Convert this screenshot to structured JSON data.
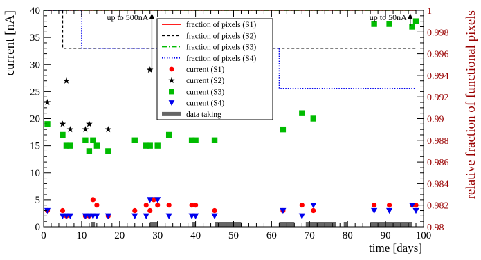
{
  "chart_data": {
    "type": "scatter",
    "xlabel": "time [days]",
    "ylabel_left": "current [nA]",
    "ylabel_right": "relative fraction of functional pixels",
    "xlim": [
      0,
      100
    ],
    "ylim_left": [
      0,
      40
    ],
    "ylim_right": [
      0.98,
      1.0
    ],
    "x_ticks": [
      0,
      10,
      20,
      30,
      40,
      50,
      60,
      70,
      80,
      90,
      100
    ],
    "y_ticks_left": [
      0,
      5,
      10,
      15,
      20,
      25,
      30,
      35,
      40
    ],
    "y_ticks_right": [
      0.98,
      0.982,
      0.984,
      0.986,
      0.988,
      0.99,
      0.992,
      0.994,
      0.996,
      0.998,
      1
    ],
    "grid": false,
    "legend_position": "top-center",
    "colors": {
      "s1": "#ff0000",
      "s2": "#000000",
      "s3": "#00bb00",
      "s4": "#0000ee",
      "data_taking": "#666666",
      "right_axis": "#990000"
    },
    "annotations": [
      {
        "text": "up to 500nA",
        "x": 28.5,
        "y": 40
      },
      {
        "text": "up to 50nA",
        "x": 96.5,
        "y": 40
      }
    ],
    "fraction_series": [
      {
        "name": "fraction of pixels (S1)",
        "style": "solid",
        "color": "#ff0000",
        "points": [
          [
            0,
            1.0
          ],
          [
            98,
            1.0
          ]
        ]
      },
      {
        "name": "fraction of pixels (S2)",
        "style": "dashed",
        "color": "#000000",
        "points": [
          [
            0,
            1.0
          ],
          [
            5,
            1.0
          ],
          [
            5,
            0.9965
          ],
          [
            98,
            0.9965
          ]
        ]
      },
      {
        "name": "fraction of pixels (S3)",
        "style": "dashdot",
        "color": "#00bb00",
        "points": [
          [
            0,
            1.0
          ],
          [
            98,
            1.0
          ]
        ]
      },
      {
        "name": "fraction of pixels (S4)",
        "style": "dotted",
        "color": "#0000ee",
        "points": [
          [
            0,
            1.0
          ],
          [
            10,
            1.0
          ],
          [
            10,
            0.9965
          ],
          [
            62,
            0.9965
          ],
          [
            62,
            0.9928
          ],
          [
            98,
            0.9928
          ]
        ]
      }
    ],
    "current_series": [
      {
        "name": "current (S1)",
        "marker": "circle",
        "color": "#ff0000",
        "points": [
          [
            1,
            3
          ],
          [
            5,
            3
          ],
          [
            6,
            2
          ],
          [
            11,
            2
          ],
          [
            12,
            2
          ],
          [
            13,
            5
          ],
          [
            14,
            4
          ],
          [
            17,
            2
          ],
          [
            24,
            3
          ],
          [
            27,
            4
          ],
          [
            28,
            3
          ],
          [
            29,
            5
          ],
          [
            30,
            4
          ],
          [
            33,
            4
          ],
          [
            39,
            4
          ],
          [
            40,
            4
          ],
          [
            45,
            3
          ],
          [
            63,
            3
          ],
          [
            68,
            4
          ],
          [
            71,
            3
          ],
          [
            87,
            4
          ],
          [
            91,
            4
          ],
          [
            97,
            4
          ],
          [
            98,
            4
          ]
        ]
      },
      {
        "name": "current (S2)",
        "marker": "star",
        "color": "#000000",
        "points": [
          [
            1,
            23
          ],
          [
            5,
            19
          ],
          [
            6,
            27
          ],
          [
            7,
            18
          ],
          [
            11,
            18
          ],
          [
            12,
            19
          ],
          [
            17,
            18
          ],
          [
            28,
            29
          ]
        ]
      },
      {
        "name": "current (S3)",
        "marker": "square",
        "color": "#00bb00",
        "points": [
          [
            1,
            19
          ],
          [
            5,
            17
          ],
          [
            6,
            15
          ],
          [
            7,
            15
          ],
          [
            11,
            16
          ],
          [
            12,
            14
          ],
          [
            13,
            16
          ],
          [
            14,
            15
          ],
          [
            17,
            14
          ],
          [
            24,
            16
          ],
          [
            27,
            15
          ],
          [
            28,
            15
          ],
          [
            30,
            15
          ],
          [
            33,
            17
          ],
          [
            39,
            16
          ],
          [
            40,
            16
          ],
          [
            45,
            16
          ],
          [
            63,
            18
          ],
          [
            68,
            21
          ],
          [
            71,
            20
          ],
          [
            87,
            37.5
          ],
          [
            91,
            37.5
          ],
          [
            97,
            37
          ],
          [
            98,
            38
          ]
        ]
      },
      {
        "name": "current (S4)",
        "marker": "triangle-down",
        "color": "#0000ee",
        "points": [
          [
            1,
            3
          ],
          [
            5,
            2
          ],
          [
            6,
            2
          ],
          [
            7,
            2
          ],
          [
            11,
            2
          ],
          [
            12,
            2
          ],
          [
            13,
            2
          ],
          [
            14,
            2
          ],
          [
            17,
            2
          ],
          [
            24,
            2
          ],
          [
            27,
            2
          ],
          [
            28,
            5
          ],
          [
            30,
            5
          ],
          [
            33,
            2
          ],
          [
            39,
            2
          ],
          [
            40,
            2
          ],
          [
            45,
            2
          ],
          [
            63,
            3
          ],
          [
            68,
            2
          ],
          [
            71,
            4
          ],
          [
            87,
            3
          ],
          [
            91,
            3
          ],
          [
            97,
            4
          ],
          [
            98,
            3
          ]
        ]
      }
    ],
    "data_taking": {
      "name": "data taking",
      "color": "#666666",
      "intervals": [
        [
          12.5,
          13.5
        ],
        [
          28,
          30
        ],
        [
          39,
          40
        ],
        [
          45,
          52
        ],
        [
          62,
          66
        ],
        [
          69,
          77
        ],
        [
          79,
          80
        ],
        [
          86,
          97
        ]
      ]
    }
  }
}
